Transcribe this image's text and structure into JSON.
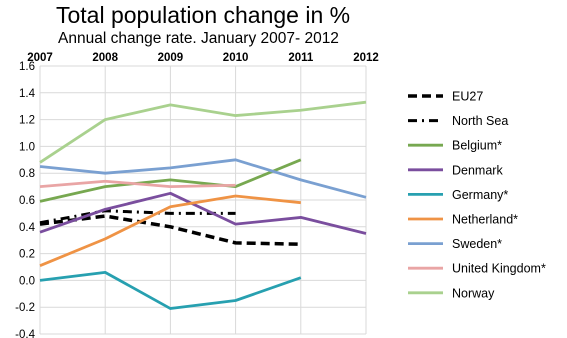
{
  "title": "Total population change in %",
  "subtitle": "Annual change rate. January 2007- 2012",
  "chart_data": {
    "type": "line",
    "title": "Total population change in %",
    "subtitle": "Annual change rate. January 2007- 2012",
    "x": [
      "2007",
      "2008",
      "2009",
      "2010",
      "2011",
      "2012"
    ],
    "xlabel": "",
    "ylabel": "",
    "ylim": [
      -0.4,
      1.6
    ],
    "yticks": [
      "1.6",
      "1.4",
      "1.2",
      "1.0",
      "0.8",
      "0.6",
      "0.4",
      "0.2",
      "0.0",
      "-0.2",
      "-0.4"
    ],
    "x_axis_position": "top",
    "grid": true,
    "legend_position": "right",
    "series": [
      {
        "name": "EU27",
        "color": "#000000",
        "style": "dashed",
        "values": [
          0.42,
          0.48,
          0.4,
          0.28,
          0.27,
          null
        ]
      },
      {
        "name": "North Sea",
        "color": "#000000",
        "style": "dashdot",
        "values": [
          0.43,
          0.52,
          0.5,
          0.5,
          null,
          null
        ]
      },
      {
        "name": "Belgium*",
        "color": "#77a850",
        "style": "solid",
        "values": [
          0.59,
          0.7,
          0.75,
          0.7,
          0.9,
          null
        ]
      },
      {
        "name": "Denmark",
        "color": "#7a4e9e",
        "style": "solid",
        "values": [
          0.36,
          0.53,
          0.65,
          0.42,
          0.47,
          0.35
        ]
      },
      {
        "name": "Germany*",
        "color": "#27a0b0",
        "style": "solid",
        "values": [
          0.0,
          0.06,
          -0.21,
          -0.15,
          0.02,
          null
        ]
      },
      {
        "name": "Netherland*",
        "color": "#ef9345",
        "style": "solid",
        "values": [
          0.11,
          0.31,
          0.55,
          0.63,
          0.58,
          null
        ]
      },
      {
        "name": "Sweden*",
        "color": "#7aa0d1",
        "style": "solid",
        "values": [
          0.85,
          0.8,
          0.84,
          0.9,
          0.75,
          0.62
        ]
      },
      {
        "name": "United Kingdom*",
        "color": "#e9a5a5",
        "style": "solid",
        "values": [
          0.7,
          0.74,
          0.7,
          0.71,
          null,
          null
        ]
      },
      {
        "name": "Norway",
        "color": "#a9d18e",
        "style": "solid",
        "values": [
          0.88,
          1.2,
          1.31,
          1.23,
          1.27,
          1.33
        ]
      }
    ]
  }
}
